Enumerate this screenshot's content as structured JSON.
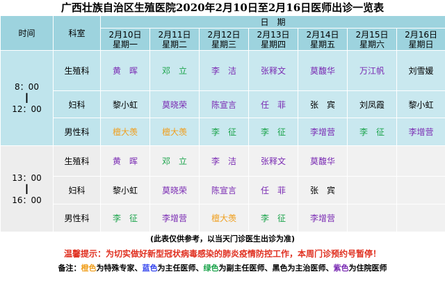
{
  "title": "广西壮族自治区生殖医院2020年2月10日至2月16日医师出诊一览表",
  "header": {
    "time": "时间",
    "dept": "科室",
    "dates_label": "日　期",
    "days": [
      {
        "date": "2月10日",
        "weekday": "星期一"
      },
      {
        "date": "2月11日",
        "weekday": "星期二"
      },
      {
        "date": "2月12日",
        "weekday": "星期三"
      },
      {
        "date": "2月13日",
        "weekday": "星期四"
      },
      {
        "date": "2月14日",
        "weekday": "星期五"
      },
      {
        "date": "2月15日",
        "weekday": "星期六"
      },
      {
        "date": "2月16日",
        "weekday": "星期日"
      }
    ]
  },
  "am": {
    "time_start": "8：00",
    "time_sep": "┃",
    "time_end": "12：00",
    "rows": [
      {
        "dept": "生殖科",
        "cells": [
          {
            "name": "黄　晖",
            "color": "purple"
          },
          {
            "name": "邓　立",
            "color": "green"
          },
          {
            "name": "李　洁",
            "color": "purple"
          },
          {
            "name": "张释文",
            "color": "purple"
          },
          {
            "name": "莫馥华",
            "color": "purple"
          },
          {
            "name": "万江帆",
            "color": "purple"
          },
          {
            "name": "刘雪媛",
            "color": "black"
          }
        ]
      },
      {
        "dept": "妇科",
        "cells": [
          {
            "name": "黎小虹",
            "color": "black"
          },
          {
            "name": "莫晓荣",
            "color": "purple"
          },
          {
            "name": "陈宣言",
            "color": "purple"
          },
          {
            "name": "任　菲",
            "color": "purple"
          },
          {
            "name": "张　宾",
            "color": "black"
          },
          {
            "name": "刘凤霞",
            "color": "black"
          },
          {
            "name": "黎小虹",
            "color": "black"
          }
        ]
      },
      {
        "dept": "男性科",
        "cells": [
          {
            "name": "檀大羡",
            "color": "orange"
          },
          {
            "name": "檀大羡",
            "color": "orange"
          },
          {
            "name": "李　征",
            "color": "green"
          },
          {
            "name": "李　征",
            "color": "green"
          },
          {
            "name": "李增营",
            "color": "purple"
          },
          {
            "name": "李　征",
            "color": "green"
          },
          {
            "name": "李增营",
            "color": "purple"
          }
        ]
      }
    ]
  },
  "pm": {
    "time_start": "13：00",
    "time_sep": "┃",
    "time_end": "16：00",
    "rows": [
      {
        "dept": "生殖科",
        "cells": [
          {
            "name": "黄　晖",
            "color": "purple"
          },
          {
            "name": "邓　立",
            "color": "green"
          },
          {
            "name": "李　洁",
            "color": "purple"
          },
          {
            "name": "张释文",
            "color": "purple"
          },
          {
            "name": "莫馥华",
            "color": "purple"
          },
          {
            "name": "",
            "color": "black"
          },
          {
            "name": "",
            "color": "black"
          }
        ]
      },
      {
        "dept": "妇科",
        "cells": [
          {
            "name": "黎小虹",
            "color": "black"
          },
          {
            "name": "莫晓荣",
            "color": "purple"
          },
          {
            "name": "陈宣言",
            "color": "purple"
          },
          {
            "name": "任　菲",
            "color": "purple"
          },
          {
            "name": "张　宾",
            "color": "black"
          },
          {
            "name": "",
            "color": "black"
          },
          {
            "name": "",
            "color": "black"
          }
        ]
      },
      {
        "dept": "男性科",
        "cells": [
          {
            "name": "李　征",
            "color": "green"
          },
          {
            "name": "李增营",
            "color": "purple"
          },
          {
            "name": "檀大羡",
            "color": "orange"
          },
          {
            "name": "李　征",
            "color": "green"
          },
          {
            "name": "李增营",
            "color": "purple"
          },
          {
            "name": "",
            "color": "black"
          },
          {
            "name": "",
            "color": "black"
          }
        ]
      }
    ]
  },
  "notes": {
    "reference": "(此表仅供参考，以当天门诊医生出诊为准)",
    "warning": "温馨提示：为切实做好新型冠状病毒感染的肺炎疫情防控工作，本周门诊预约号暂停！",
    "legend_prefix": "备注：",
    "legend": [
      {
        "term": "橙色",
        "desc": "为特殊专家、",
        "color": "orange"
      },
      {
        "term": "蓝色",
        "desc": "为主任医师、",
        "color": "blue"
      },
      {
        "term": "绿色",
        "desc": "为副主任医师、",
        "color": "green"
      },
      {
        "term": "黑色",
        "desc": "为主治医师、",
        "color": "black"
      },
      {
        "term": "紫色",
        "desc": "为住院医师",
        "color": "purple"
      }
    ]
  },
  "colors": {
    "orange": "#f0a020",
    "blue": "#3344ee",
    "green": "#1aa34a",
    "black": "#000000",
    "purple": "#7a2bb3",
    "header_bg": "#9dd3de",
    "am_bg": "#bfe4ec",
    "pm_bg": "#ededed",
    "warning": "#e03020"
  }
}
